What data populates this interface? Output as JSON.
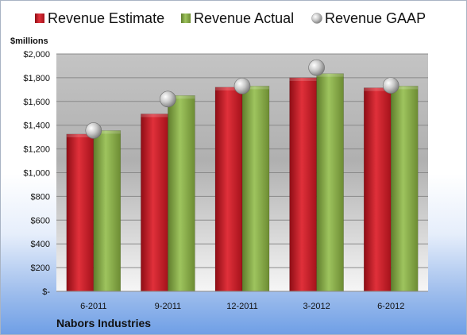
{
  "chart_data": {
    "type": "bar",
    "unit_label": "$millions",
    "categories": [
      "6-2011",
      "9-2011",
      "12-2011",
      "3-2012",
      "6-2012"
    ],
    "series": [
      {
        "name": "Revenue Estimate",
        "style": "bar",
        "color": "#cc1f2a",
        "values": [
          1325,
          1495,
          1720,
          1800,
          1715
        ]
      },
      {
        "name": "Revenue Actual",
        "style": "bar",
        "color": "#8fb04e",
        "values": [
          1355,
          1650,
          1730,
          1835,
          1730
        ]
      },
      {
        "name": "Revenue GAAP",
        "style": "marker",
        "color": "#b8b8b8",
        "values": [
          1355,
          1620,
          1730,
          1885,
          1735
        ]
      }
    ],
    "y_ticks": [
      "$-",
      "$200",
      "$400",
      "$600",
      "$800",
      "$1,000",
      "$1,200",
      "$1,400",
      "$1,600",
      "$1,800",
      "$2,000"
    ],
    "ylim": [
      0,
      2000
    ],
    "grid": true,
    "legend_position": "top",
    "footer": "Nabors Industries"
  }
}
